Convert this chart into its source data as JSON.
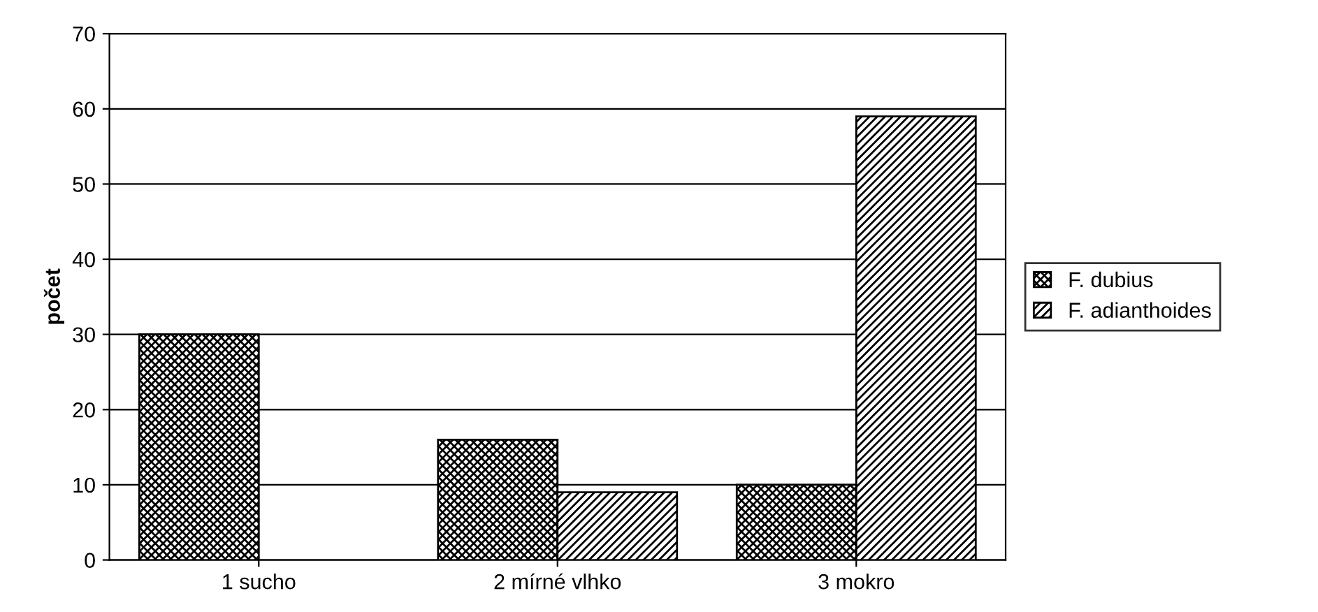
{
  "chart_data": {
    "type": "bar",
    "ylabel": "počet",
    "categories": [
      "1 sucho",
      "2 mírné vlhko",
      "3 mokro"
    ],
    "series": [
      {
        "name": "F. dubius",
        "color": "#000000",
        "values": [
          30,
          16,
          10
        ]
      },
      {
        "name": "F. adianthoides",
        "color": "#000000",
        "values": [
          null,
          9,
          59
        ]
      }
    ],
    "ylim": [
      0,
      70
    ],
    "yticks": [
      0,
      10,
      20,
      30,
      40,
      50,
      60,
      70
    ],
    "grid": "y",
    "legend": "right"
  }
}
